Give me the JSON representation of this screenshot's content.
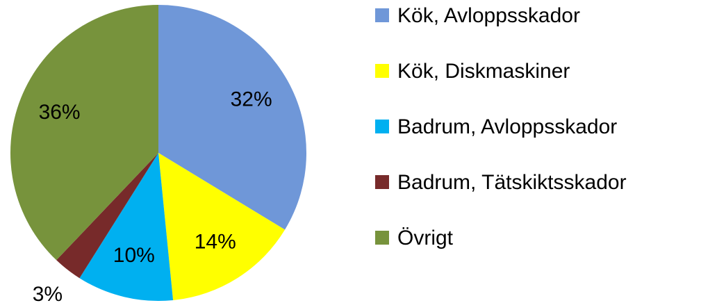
{
  "chart_data": {
    "type": "pie",
    "categories": [
      "Kök, Avloppsskador",
      "Kök, Diskmaskiner",
      "Badrum, Avloppsskador",
      "Badrum, Tätskiktsskador",
      "Övrigt"
    ],
    "values": [
      32,
      14,
      10,
      3,
      36
    ],
    "value_labels": [
      "32%",
      "14%",
      "10%",
      "3%",
      "36%"
    ],
    "colors": [
      "#6f97d8",
      "#ffff00",
      "#00b0f0",
      "#772a2a",
      "#77933c"
    ],
    "legend": "right"
  }
}
